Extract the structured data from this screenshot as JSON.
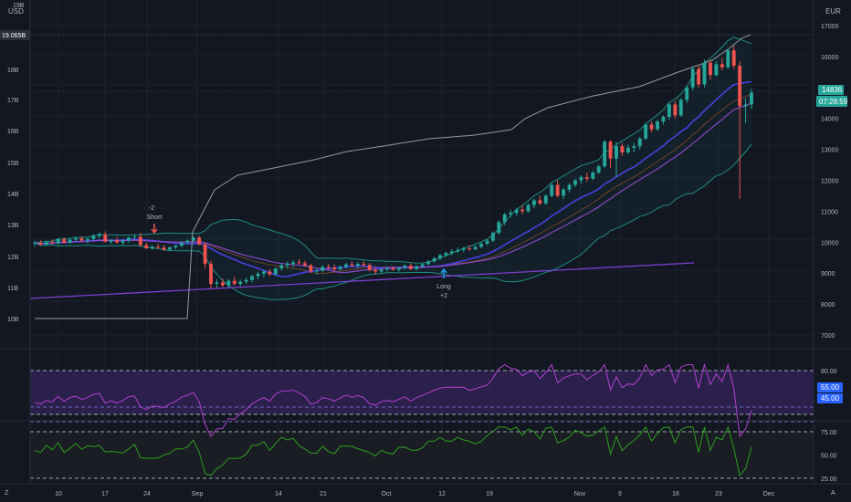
{
  "left_axis": {
    "currency": "USD",
    "top_partial": "19B",
    "current_value": "19.065B",
    "ticks": [
      "18B",
      "17B",
      "16B",
      "15B",
      "14B",
      "13B",
      "12B",
      "11B",
      "10B"
    ]
  },
  "right_axis": {
    "currency": "EUR",
    "ticks": [
      "17000",
      "16000",
      "15000",
      "14000",
      "13000",
      "12000",
      "11000",
      "10000",
      "9000",
      "8000",
      "7000"
    ],
    "price_label": "14836",
    "countdown_label": "07:28:59"
  },
  "x_axis": {
    "labels": [
      "10",
      "17",
      "24",
      "Sep",
      "14",
      "21",
      "Oct",
      "12",
      "19",
      "Nov",
      "9",
      "16",
      "23",
      "Dec"
    ]
  },
  "annotations": {
    "short": {
      "qty": "-2",
      "text": "Short"
    },
    "long": {
      "text": "Long",
      "qty": "+2"
    }
  },
  "rsi_panel": {
    "ticks": [
      "80.00",
      "60.00"
    ],
    "band_labels": [
      "55.00",
      "45.00"
    ]
  },
  "osc_panel": {
    "ticks": [
      "75.00",
      "50.00",
      "25.00"
    ]
  },
  "corners": {
    "bottom_left": "Z",
    "bottom_right": "A"
  },
  "colors": {
    "background": "#131722",
    "up": "#26a69a",
    "down": "#ef5350",
    "bollinger": "#1e8c7e",
    "ma_fast": "#4a3fe0",
    "ma_slow": "#9b4fe0",
    "trendline": "#7b3fd0",
    "volume_line": "#9598a1",
    "rsi": "#b040d0",
    "osc": "#2e9e1e",
    "rsi_band": "#2f2150",
    "label_blue": "#2962ff"
  },
  "chart_data": {
    "type": "candlestick",
    "x_start": "Aug 4",
    "x_end": "Nov 27",
    "y_unit": "EUR",
    "candles": [
      [
        9950,
        10050,
        9850,
        9980
      ],
      [
        9980,
        10060,
        9900,
        9920
      ],
      [
        9920,
        10030,
        9880,
        10000
      ],
      [
        10000,
        10080,
        9930,
        9960
      ],
      [
        9960,
        10120,
        9920,
        10100
      ],
      [
        10100,
        10150,
        9950,
        9980
      ],
      [
        9980,
        10120,
        9940,
        10080
      ],
      [
        10080,
        10180,
        10020,
        10120
      ],
      [
        10120,
        10200,
        10010,
        10050
      ],
      [
        10050,
        10160,
        9960,
        10100
      ],
      [
        10100,
        10260,
        10050,
        10200
      ],
      [
        10200,
        10320,
        10120,
        10250
      ],
      [
        10250,
        10350,
        10000,
        10010
      ],
      [
        10010,
        10100,
        9950,
        10060
      ],
      [
        10060,
        10160,
        9960,
        9990
      ],
      [
        9990,
        10090,
        9900,
        10050
      ],
      [
        10050,
        10180,
        9980,
        10150
      ],
      [
        10150,
        10250,
        10080,
        10180
      ],
      [
        10180,
        10300,
        9870,
        9900
      ],
      [
        9900,
        9980,
        9780,
        9800
      ],
      [
        9800,
        9900,
        9750,
        9850
      ],
      [
        9850,
        9950,
        9780,
        9820
      ],
      [
        9820,
        9900,
        9720,
        9760
      ],
      [
        9760,
        9860,
        9700,
        9830
      ],
      [
        9830,
        9920,
        9770,
        9880
      ],
      [
        9880,
        10020,
        9850,
        9990
      ],
      [
        9990,
        10080,
        9930,
        10050
      ],
      [
        10050,
        10180,
        10000,
        10150
      ],
      [
        10150,
        10200,
        9900,
        9930
      ],
      [
        9930,
        9960,
        9150,
        9300
      ],
      [
        9300,
        9400,
        8500,
        8650
      ],
      [
        8650,
        8800,
        8520,
        8700
      ],
      [
        8700,
        8820,
        8550,
        8600
      ],
      [
        8600,
        8800,
        8530,
        8750
      ],
      [
        8750,
        8880,
        8600,
        8650
      ],
      [
        8650,
        8780,
        8560,
        8720
      ],
      [
        8720,
        8850,
        8650,
        8780
      ],
      [
        8780,
        8950,
        8700,
        8900
      ],
      [
        8900,
        9050,
        8800,
        8980
      ],
      [
        8980,
        9100,
        8850,
        9050
      ],
      [
        9050,
        9120,
        8900,
        8960
      ],
      [
        8960,
        9180,
        8920,
        9150
      ],
      [
        9150,
        9300,
        9080,
        9250
      ],
      [
        9250,
        9380,
        9150,
        9300
      ],
      [
        9300,
        9420,
        9200,
        9350
      ],
      [
        9350,
        9450,
        9280,
        9320
      ],
      [
        9320,
        9400,
        9200,
        9250
      ],
      [
        9250,
        9300,
        9000,
        9050
      ],
      [
        9050,
        9150,
        8950,
        9080
      ],
      [
        9080,
        9250,
        9020,
        9200
      ],
      [
        9200,
        9300,
        9100,
        9180
      ],
      [
        9180,
        9280,
        9050,
        9120
      ],
      [
        9120,
        9250,
        9080,
        9200
      ],
      [
        9200,
        9330,
        9150,
        9280
      ],
      [
        9280,
        9380,
        9200,
        9240
      ],
      [
        9240,
        9350,
        9150,
        9300
      ],
      [
        9300,
        9380,
        9220,
        9260
      ],
      [
        9260,
        9320,
        9050,
        9100
      ],
      [
        9100,
        9200,
        8950,
        9050
      ],
      [
        9050,
        9150,
        8980,
        9120
      ],
      [
        9120,
        9200,
        9050,
        9150
      ],
      [
        9150,
        9220,
        9080,
        9110
      ],
      [
        9110,
        9200,
        9040,
        9170
      ],
      [
        9170,
        9280,
        9120,
        9240
      ],
      [
        9240,
        9320,
        9100,
        9130
      ],
      [
        9130,
        9260,
        9090,
        9220
      ],
      [
        9220,
        9320,
        9180,
        9290
      ],
      [
        9290,
        9420,
        9250,
        9380
      ],
      [
        9380,
        9520,
        9320,
        9480
      ],
      [
        9480,
        9620,
        9420,
        9580
      ],
      [
        9580,
        9700,
        9520,
        9650
      ],
      [
        9650,
        9780,
        9580,
        9700
      ],
      [
        9700,
        9820,
        9650,
        9750
      ],
      [
        9750,
        9850,
        9680,
        9800
      ],
      [
        9800,
        9900,
        9720,
        9770
      ],
      [
        9770,
        9880,
        9740,
        9850
      ],
      [
        9850,
        10000,
        9800,
        9950
      ],
      [
        9950,
        10100,
        9900,
        10050
      ],
      [
        10050,
        10350,
        10000,
        10300
      ],
      [
        10300,
        10700,
        10250,
        10650
      ],
      [
        10650,
        10950,
        10550,
        10900
      ],
      [
        10900,
        11050,
        10800,
        10950
      ],
      [
        10950,
        11100,
        10850,
        11050
      ],
      [
        11050,
        11200,
        10900,
        11000
      ],
      [
        11000,
        11250,
        10950,
        11200
      ],
      [
        11200,
        11400,
        11100,
        11350
      ],
      [
        11350,
        11500,
        11200,
        11250
      ],
      [
        11250,
        11550,
        11200,
        11500
      ],
      [
        11500,
        11900,
        11450,
        11850
      ],
      [
        11850,
        12000,
        11450,
        11500
      ],
      [
        11500,
        11750,
        11400,
        11700
      ],
      [
        11700,
        11900,
        11600,
        11850
      ],
      [
        11850,
        12050,
        11780,
        12000
      ],
      [
        12000,
        12150,
        11900,
        12100
      ],
      [
        12100,
        12250,
        11950,
        12050
      ],
      [
        12050,
        12300,
        12000,
        12250
      ],
      [
        12250,
        12500,
        12200,
        12450
      ],
      [
        12450,
        13300,
        12400,
        13250
      ],
      [
        13250,
        13300,
        12400,
        12700
      ],
      [
        12700,
        13250,
        12100,
        13100
      ],
      [
        13100,
        13200,
        12800,
        12900
      ],
      [
        12900,
        13150,
        12850,
        13050
      ],
      [
        13050,
        13200,
        12900,
        13100
      ],
      [
        13100,
        13400,
        13000,
        13350
      ],
      [
        13350,
        13850,
        13300,
        13800
      ],
      [
        13800,
        13900,
        13550,
        13650
      ],
      [
        13650,
        13950,
        13600,
        13900
      ],
      [
        13900,
        14100,
        13800,
        14050
      ],
      [
        14050,
        14500,
        13950,
        14450
      ],
      [
        14450,
        14550,
        14000,
        14100
      ],
      [
        14100,
        14650,
        14050,
        14600
      ],
      [
        14600,
        15050,
        14500,
        15000
      ],
      [
        15000,
        15700,
        14900,
        15600
      ],
      [
        15600,
        15700,
        15000,
        15100
      ],
      [
        15100,
        15900,
        15000,
        15800
      ],
      [
        15800,
        15900,
        15250,
        15400
      ],
      [
        15400,
        15850,
        15350,
        15750
      ],
      [
        15750,
        15950,
        15550,
        15650
      ],
      [
        15650,
        16250,
        15600,
        16200
      ],
      [
        16200,
        16350,
        15600,
        15700
      ],
      [
        15700,
        15850,
        11400,
        14400
      ],
      [
        14400,
        14650,
        13850,
        14450
      ],
      [
        14450,
        14950,
        14300,
        14836
      ]
    ],
    "left_axis_range_usd": [
      10000000000,
      19065000000
    ],
    "right_axis_range": [
      7000,
      17000
    ],
    "rsi_levels": [
      80,
      60,
      55,
      45
    ],
    "osc_levels": [
      75,
      50,
      25
    ]
  }
}
